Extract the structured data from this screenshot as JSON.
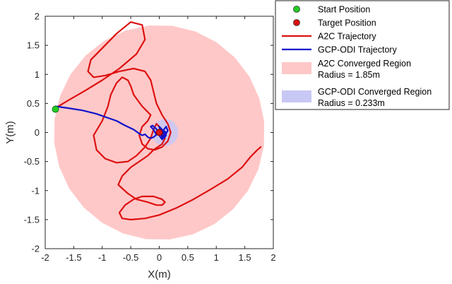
{
  "chart_data": {
    "type": "line",
    "xlabel": "X(m)",
    "ylabel": "Y(m)",
    "xlim": [
      -2,
      2
    ],
    "ylim": [
      -2,
      2
    ],
    "xticks": [
      -2,
      -1.5,
      -1,
      -0.5,
      0,
      0.5,
      1,
      1.5,
      2
    ],
    "yticks": [
      2,
      1.5,
      1,
      0.5,
      0,
      -0.5,
      -1,
      -1.5,
      -2
    ],
    "xtick_labels": [
      "-2",
      "-1.5",
      "-1",
      "-0.5",
      "0",
      "0.5",
      "1",
      "1.5",
      "2"
    ],
    "ytick_labels": [
      "2",
      "1.5",
      "1",
      "0.5",
      "0",
      "-0.5",
      "-1",
      "-1.5",
      "-2"
    ],
    "grid": false,
    "legend_position": "top-right",
    "colors": {
      "start": "#22cc22",
      "target": "#dd1111",
      "a2c": "#dd1111",
      "gcp": "#1111cc",
      "a2c_region": "#ffc8c8",
      "gcp_region": "#c8c8f4"
    },
    "start_position": {
      "x": -1.82,
      "y": 0.4
    },
    "target_position": {
      "x": 0.0,
      "y": 0.0
    },
    "regions": [
      {
        "name": "A2C Converged Region",
        "radius_label": "Radius = 1.85m",
        "cx": 0,
        "cy": 0,
        "radius": 1.85
      },
      {
        "name": "GCP-ODI Converged Region",
        "radius_label": "Radius = 0.233m",
        "cx": 0.1,
        "cy": 0.0,
        "radius": 0.233
      }
    ],
    "series": [
      {
        "name": "A2C Trajectory",
        "x": [
          -1.82,
          -1.6,
          -1.3,
          -1.0,
          -0.7,
          -0.4,
          -0.25,
          -0.3,
          -0.5,
          -0.75,
          -1.0,
          -1.2,
          -1.25,
          -1.15,
          -0.95,
          -0.7,
          -0.45,
          -0.25,
          -0.15,
          -0.1,
          -0.05,
          0.05,
          0.15,
          0.2,
          0.15,
          0.05,
          -0.08,
          -0.2,
          -0.3,
          -0.35,
          -0.3,
          -0.2,
          -0.15,
          -0.3,
          -0.45,
          -0.5,
          -0.55,
          -0.65,
          -0.75,
          -0.85,
          -0.9,
          -1.0,
          -1.15,
          -1.1,
          -0.95,
          -0.75,
          -0.55,
          -0.4,
          -0.25,
          -0.15,
          -0.1,
          -0.05,
          0.0,
          0.05,
          0.1,
          0.05,
          -0.1,
          -0.2,
          -0.35,
          -0.5,
          -0.65,
          -0.72,
          -0.55,
          -0.4,
          -0.2,
          -0.05,
          0.05,
          0.1,
          0.05,
          -0.1,
          -0.3,
          -0.45,
          -0.6,
          -0.7,
          -0.65,
          -0.5,
          -0.25,
          0.0,
          0.3,
          0.6,
          0.9,
          1.2,
          1.45,
          1.6,
          1.72,
          1.78
        ],
        "y": [
          0.42,
          0.55,
          0.72,
          0.9,
          1.1,
          1.35,
          1.6,
          1.85,
          1.9,
          1.7,
          1.45,
          1.25,
          1.05,
          0.95,
          0.98,
          1.05,
          1.1,
          1.05,
          0.9,
          0.7,
          0.5,
          0.3,
          0.15,
          0.0,
          -0.15,
          -0.25,
          -0.3,
          -0.28,
          -0.2,
          -0.05,
          0.1,
          0.2,
          0.3,
          0.45,
          0.65,
          0.8,
          0.9,
          0.95,
          0.85,
          0.65,
          0.45,
          0.2,
          -0.05,
          -0.3,
          -0.45,
          -0.52,
          -0.5,
          -0.4,
          -0.25,
          -0.1,
          0.05,
          0.15,
          0.1,
          0.0,
          -0.1,
          -0.2,
          -0.3,
          -0.4,
          -0.5,
          -0.6,
          -0.75,
          -0.9,
          -1.05,
          -1.15,
          -1.2,
          -1.25,
          -1.25,
          -1.2,
          -1.15,
          -1.1,
          -1.1,
          -1.15,
          -1.25,
          -1.38,
          -1.48,
          -1.5,
          -1.48,
          -1.42,
          -1.3,
          -1.15,
          -0.98,
          -0.8,
          -0.6,
          -0.42,
          -0.3,
          -0.25
        ]
      },
      {
        "name": "GCP-ODI Trajectory",
        "x": [
          -1.82,
          -1.6,
          -1.35,
          -1.1,
          -0.9,
          -0.75,
          -0.6,
          -0.45,
          -0.35,
          -0.3,
          -0.25,
          -0.2,
          -0.15,
          -0.1,
          -0.05,
          -0.1,
          -0.15,
          -0.12,
          -0.05,
          0.0,
          0.05,
          0.1,
          0.05,
          0.0,
          0.02,
          0.05,
          0.1,
          0.15,
          0.12,
          0.08,
          0.05,
          0.08,
          0.12,
          0.1,
          0.05
        ],
        "y": [
          0.45,
          0.42,
          0.38,
          0.32,
          0.25,
          0.2,
          0.12,
          0.05,
          -0.02,
          -0.05,
          -0.03,
          -0.08,
          -0.1,
          -0.08,
          -0.04,
          0.05,
          0.1,
          0.12,
          0.06,
          -0.05,
          -0.12,
          -0.05,
          0.05,
          0.1,
          0.02,
          -0.08,
          -0.05,
          0.03,
          0.1,
          0.05,
          -0.03,
          -0.1,
          -0.05,
          0.02,
          0.0
        ]
      }
    ],
    "legend": [
      {
        "label": "Start Position",
        "kind": "marker",
        "color_key": "start"
      },
      {
        "label": "Target Position",
        "kind": "marker",
        "color_key": "target"
      },
      {
        "label": "A2C Trajectory",
        "kind": "line",
        "color_key": "a2c"
      },
      {
        "label": "GCP-ODI Trajectory",
        "kind": "line",
        "color_key": "gcp"
      },
      {
        "label": "A2C Converged Region",
        "sublabel": "Radius = 1.85m",
        "kind": "patch",
        "color_key": "a2c_region"
      },
      {
        "label": "GCP-ODI Converged Region",
        "sublabel": "Radius = 0.233m",
        "kind": "patch",
        "color_key": "gcp_region"
      }
    ]
  }
}
